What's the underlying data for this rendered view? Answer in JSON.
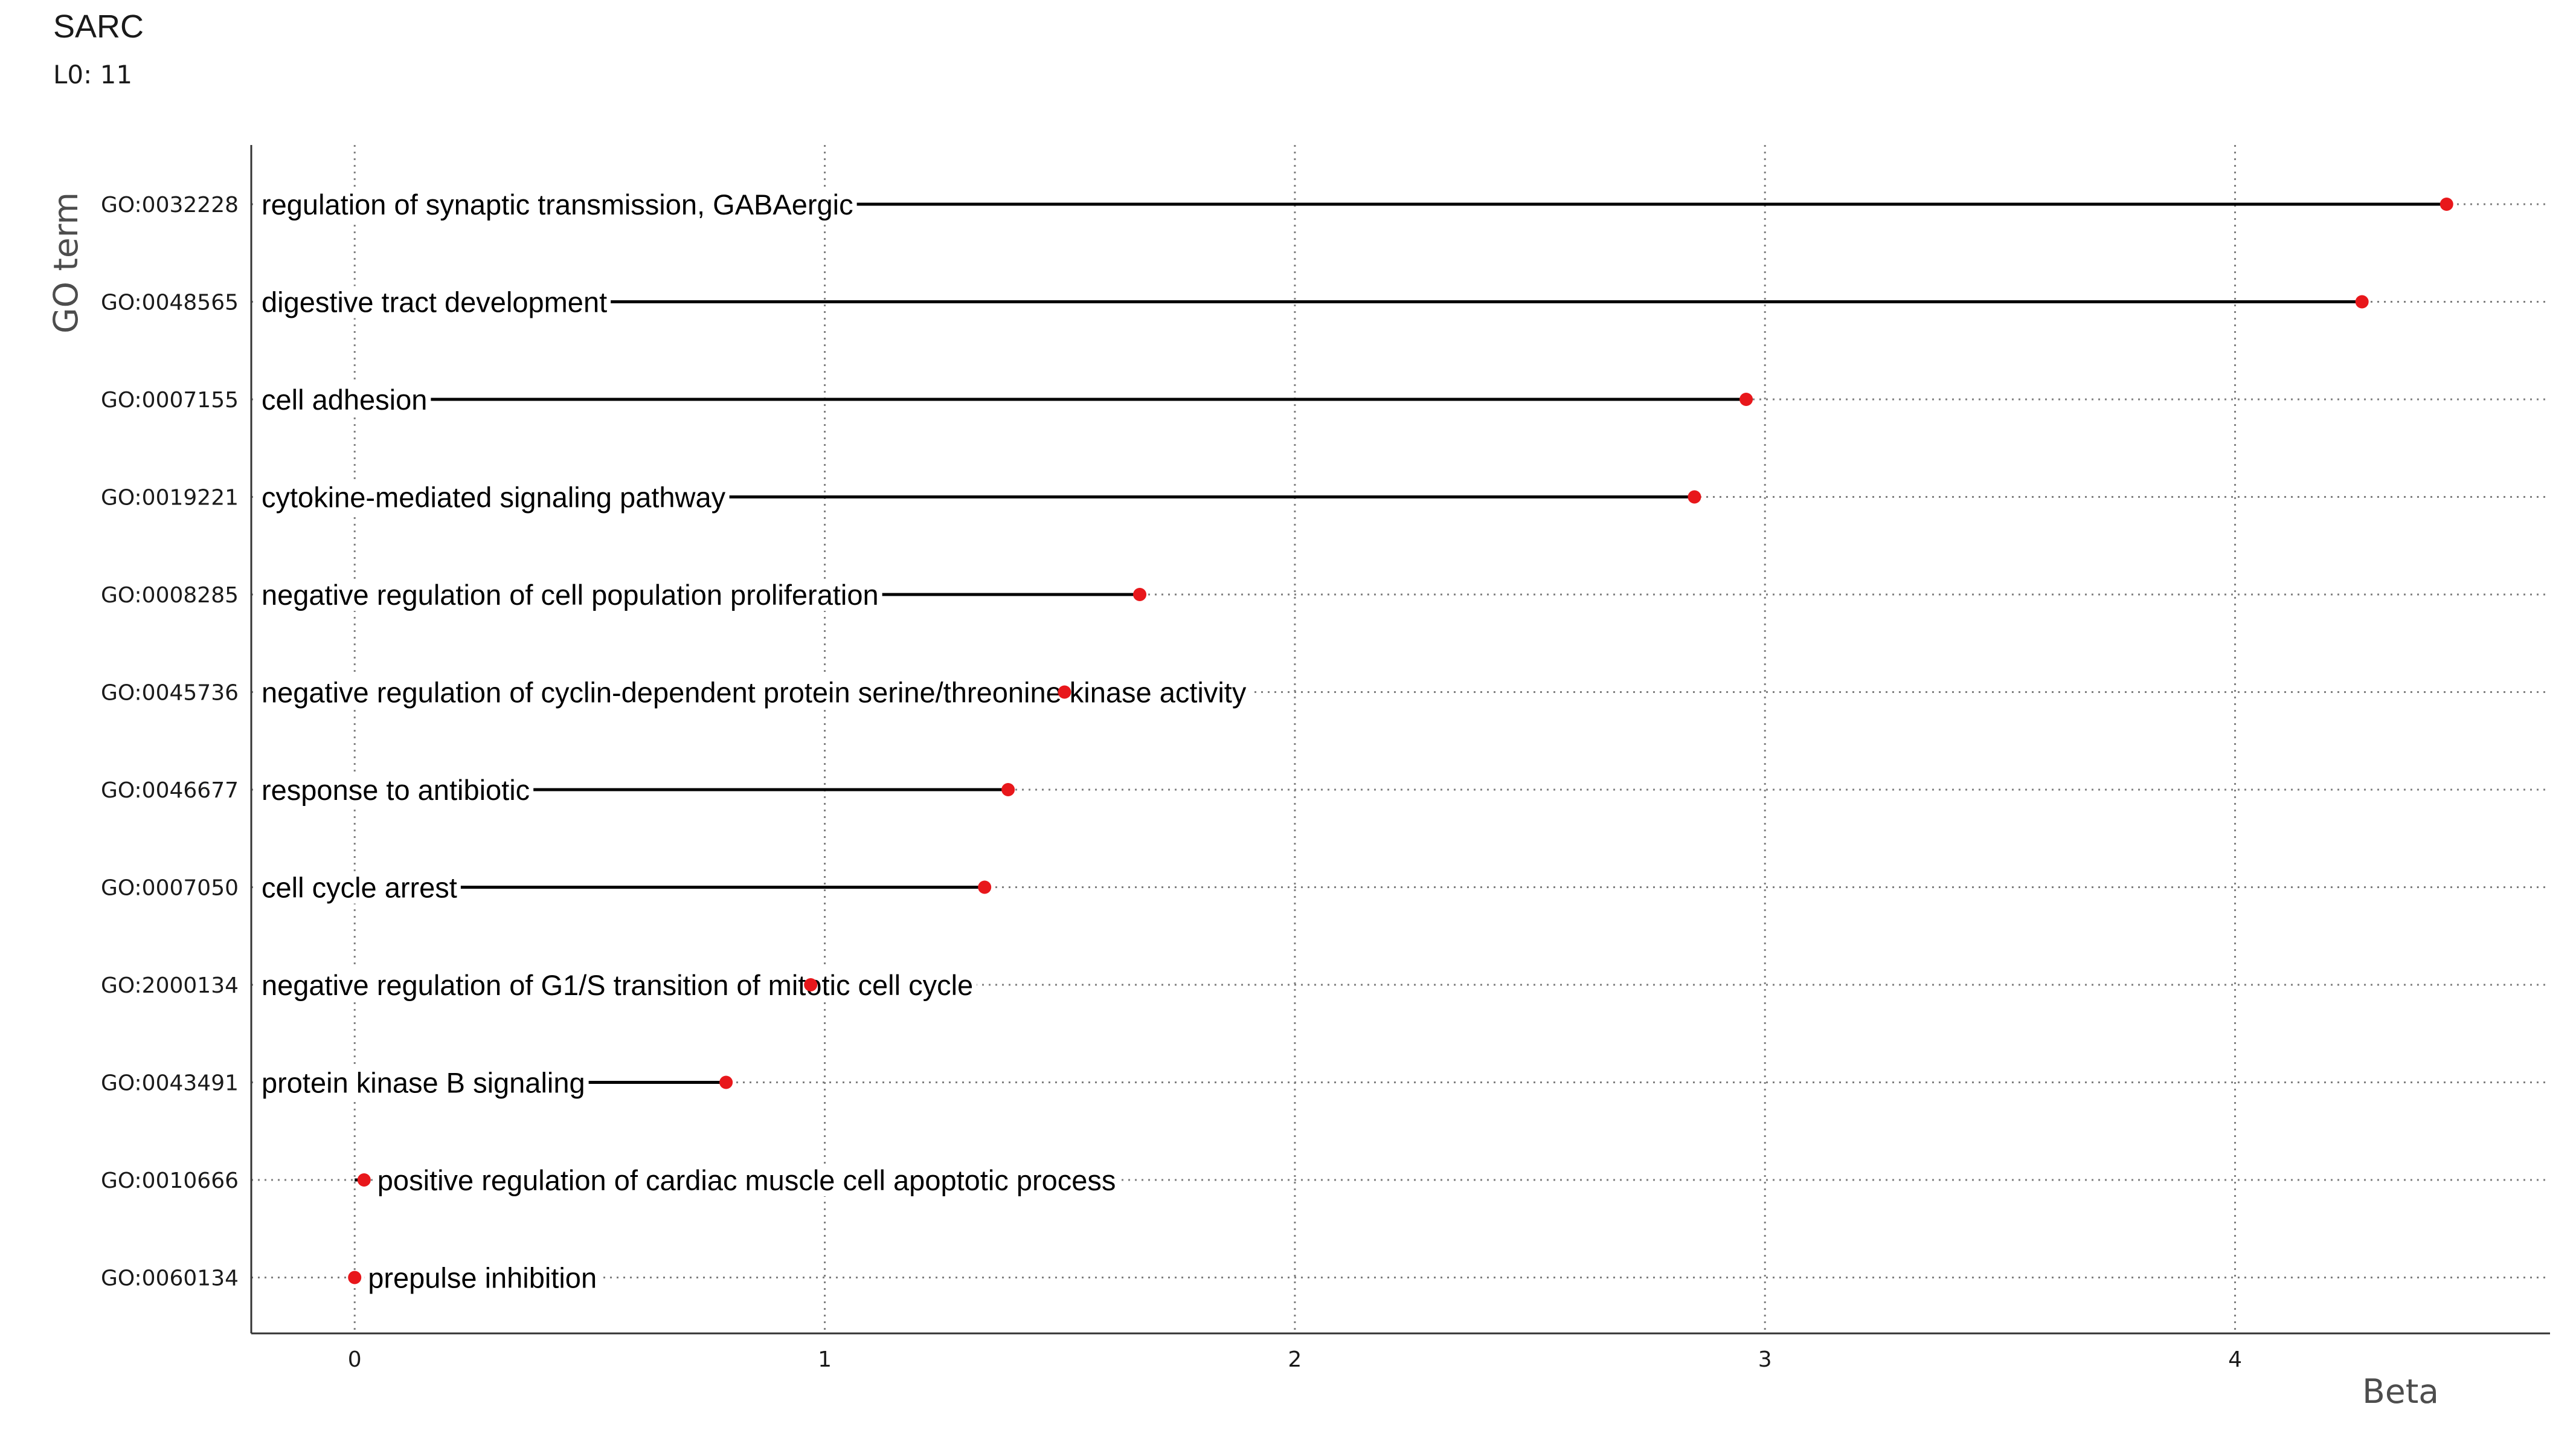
{
  "chart_data": {
    "type": "lollipop",
    "title": "SARC",
    "subtitle": "L0: 11",
    "xlabel": "Beta",
    "ylabel": "GO term",
    "xlim": [
      -0.22,
      4.67
    ],
    "xticks": [
      0,
      1,
      2,
      3,
      4
    ],
    "grid": "dotted",
    "colors": {
      "point": "#e8171b",
      "stem": "#000000",
      "grid": "#7f7f7f",
      "axis": "#333333"
    },
    "points": [
      {
        "id": "GO:0032228",
        "name": "regulation of synaptic transmission, GABAergic",
        "value": 4.45
      },
      {
        "id": "GO:0048565",
        "name": "digestive tract development",
        "value": 4.27
      },
      {
        "id": "GO:0007155",
        "name": "cell adhesion",
        "value": 2.96
      },
      {
        "id": "GO:0019221",
        "name": "cytokine-mediated signaling pathway",
        "value": 2.85
      },
      {
        "id": "GO:0008285",
        "name": "negative regulation of cell population proliferation",
        "value": 1.67
      },
      {
        "id": "GO:0045736",
        "name": "negative regulation of cyclin-dependent protein serine/threonine kinase activity",
        "value": 1.51
      },
      {
        "id": "GO:0046677",
        "name": "response to antibiotic",
        "value": 1.39
      },
      {
        "id": "GO:0007050",
        "name": "cell cycle arrest",
        "value": 1.34
      },
      {
        "id": "GO:2000134",
        "name": "negative regulation of G1/S transition of mitotic cell cycle",
        "value": 0.97
      },
      {
        "id": "GO:0043491",
        "name": "protein kinase B signaling",
        "value": 0.79
      },
      {
        "id": "GO:0010666",
        "name": "positive regulation of cardiac muscle cell apoptotic process",
        "value": 0.02
      },
      {
        "id": "GO:0060134",
        "name": "prepulse inhibition",
        "value": 0.0
      }
    ]
  }
}
